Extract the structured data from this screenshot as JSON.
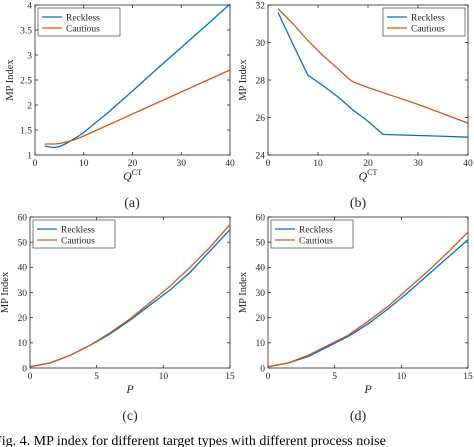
{
  "chart_data": [
    {
      "type": "line",
      "panel_label": "(a)",
      "xlabel": "Q",
      "xlabel_sup": "CT",
      "ylabel": "MP Index",
      "xlim": [
        0,
        40
      ],
      "ylim": [
        1,
        4
      ],
      "xticks": [
        0,
        10,
        20,
        30,
        40
      ],
      "yticks": [
        1,
        1.5,
        2,
        2.5,
        3,
        3.5,
        4
      ],
      "ytick_labels": [
        "1",
        "1.5",
        "2",
        "2.5",
        "3",
        "3.5",
        "4"
      ],
      "legend": {
        "placement": "top-left",
        "entries": [
          "Reckless",
          "Cautious"
        ]
      },
      "series": [
        {
          "name": "Reckless",
          "color": "#0072BD",
          "x": [
            2,
            3,
            4,
            5,
            6,
            8,
            10,
            15,
            20,
            25,
            30,
            35,
            40
          ],
          "y": [
            1.18,
            1.16,
            1.15,
            1.17,
            1.21,
            1.32,
            1.45,
            1.85,
            2.28,
            2.72,
            3.15,
            3.58,
            4.02
          ]
        },
        {
          "name": "Cautious",
          "color": "#D95319",
          "x": [
            2,
            3,
            4,
            5,
            6,
            8,
            10,
            15,
            20,
            25,
            30,
            35,
            40
          ],
          "y": [
            1.22,
            1.22,
            1.22,
            1.23,
            1.25,
            1.3,
            1.38,
            1.6,
            1.82,
            2.04,
            2.26,
            2.48,
            2.7
          ]
        }
      ]
    },
    {
      "type": "line",
      "panel_label": "(b)",
      "xlabel": "Q",
      "xlabel_sup": "CT",
      "ylabel": "MP Index",
      "xlim": [
        0,
        40
      ],
      "ylim": [
        24,
        32
      ],
      "xticks": [
        0,
        10,
        20,
        30,
        40
      ],
      "yticks": [
        24,
        26,
        28,
        30,
        32
      ],
      "ytick_labels": [
        "24",
        "26",
        "28",
        "30",
        "32"
      ],
      "legend": {
        "placement": "top-right",
        "entries": [
          "Reckless",
          "Cautious"
        ]
      },
      "series": [
        {
          "name": "Reckless",
          "color": "#0072BD",
          "x": [
            2,
            5,
            8,
            11,
            14,
            17,
            20,
            23,
            25,
            30,
            35,
            40
          ],
          "y": [
            31.6,
            29.9,
            28.25,
            27.7,
            27.1,
            26.4,
            25.8,
            25.1,
            25.08,
            25.04,
            25.0,
            24.95
          ]
        },
        {
          "name": "Cautious",
          "color": "#D95319",
          "x": [
            2,
            5,
            8,
            11,
            14,
            16,
            17,
            20,
            25,
            30,
            35,
            40
          ],
          "y": [
            31.8,
            31.0,
            30.1,
            29.3,
            28.6,
            28.1,
            27.9,
            27.6,
            27.15,
            26.7,
            26.2,
            25.7
          ]
        }
      ]
    },
    {
      "type": "line",
      "panel_label": "(c)",
      "xlabel": "P",
      "ylabel": "MP Index",
      "xlim": [
        0,
        15
      ],
      "ylim": [
        0,
        60
      ],
      "xticks": [
        0,
        5,
        10,
        15
      ],
      "yticks": [
        0,
        10,
        20,
        30,
        40,
        50,
        60
      ],
      "ytick_labels": [
        "0",
        "10",
        "20",
        "30",
        "40",
        "50",
        "60"
      ],
      "legend": {
        "placement": "top-left",
        "entries": [
          "Reckless",
          "Cautious"
        ]
      },
      "series": [
        {
          "name": "Reckless",
          "color": "#0072BD",
          "x": [
            0,
            1.5,
            3,
            4.5,
            6,
            7.5,
            9,
            10.5,
            12,
            13.5,
            15
          ],
          "y": [
            0.5,
            2,
            5,
            9,
            13.5,
            19,
            25,
            31,
            38,
            46.5,
            55
          ]
        },
        {
          "name": "Cautious",
          "color": "#D95319",
          "x": [
            0,
            1.5,
            3,
            4.5,
            6,
            7.5,
            9,
            10.5,
            12,
            13.5,
            15
          ],
          "y": [
            0.5,
            2,
            5,
            9,
            14,
            19.5,
            26,
            32.5,
            40,
            48,
            57
          ]
        }
      ]
    },
    {
      "type": "line",
      "panel_label": "(d)",
      "xlabel": "P",
      "ylabel": "MP Index",
      "xlim": [
        0,
        15
      ],
      "ylim": [
        0,
        60
      ],
      "xticks": [
        0,
        5,
        10,
        15
      ],
      "yticks": [
        0,
        10,
        20,
        30,
        40,
        50,
        60
      ],
      "ytick_labels": [
        "0",
        "10",
        "20",
        "30",
        "40",
        "50",
        "60"
      ],
      "legend": {
        "placement": "top-left",
        "entries": [
          "Reckless",
          "Cautious"
        ]
      },
      "series": [
        {
          "name": "Reckless",
          "color": "#0072BD",
          "x": [
            0,
            1.5,
            3,
            4.5,
            6,
            7.5,
            9,
            10.5,
            12,
            13.5,
            15
          ],
          "y": [
            0.5,
            2,
            4.5,
            8.5,
            12.5,
            17.5,
            23.5,
            30,
            37,
            44,
            51
          ]
        },
        {
          "name": "Cautious",
          "color": "#D95319",
          "x": [
            0,
            1.5,
            3,
            4.5,
            6,
            7.5,
            9,
            10.5,
            12,
            13.5,
            15
          ],
          "y": [
            0.5,
            2,
            5,
            9,
            13,
            18.5,
            24.5,
            31.5,
            38.5,
            46,
            54
          ]
        }
      ]
    }
  ],
  "caption": "Fig. 4.  MP index for different target types with different process noise"
}
